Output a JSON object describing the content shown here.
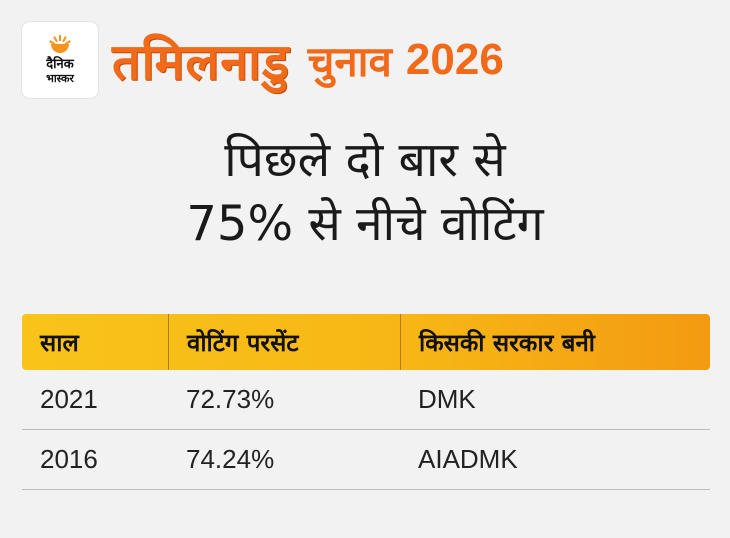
{
  "logo": {
    "line1": "दैनिक",
    "line2": "भास्कर",
    "sun_color": "#f7941d"
  },
  "banner": {
    "state": "तमिलनाडु",
    "word": "चुनाव",
    "year": "2026",
    "color": "#f06a1a"
  },
  "title": {
    "line1": "पिछले दो बार से",
    "line2": "75% से नीचे वोटिंग"
  },
  "table": {
    "headers": [
      "साल",
      "वोटिंग परसेंट",
      "किसकी सरकार बनी"
    ],
    "header_color": "#f9c41a",
    "rows": [
      [
        "2021",
        "72.73%",
        "DMK"
      ],
      [
        "2016",
        "74.24%",
        "AIADMK"
      ]
    ]
  }
}
